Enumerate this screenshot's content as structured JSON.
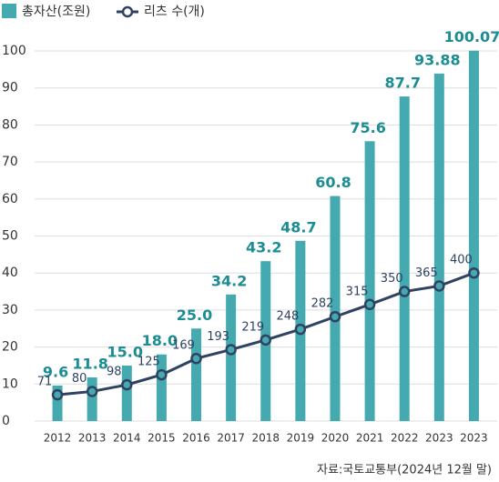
{
  "chart_data": {
    "type": "bar-line",
    "categories": [
      "2012",
      "2013",
      "2014",
      "2015",
      "2016",
      "2017",
      "2018",
      "2019",
      "2020",
      "2021",
      "2022",
      "2023",
      "2023"
    ],
    "series": [
      {
        "name": "총자산(조원)",
        "type": "bar",
        "color": "#45aab0",
        "label_color": "#1b8d93",
        "values": [
          9.6,
          11.8,
          15.0,
          18.0,
          25.0,
          34.2,
          43.2,
          48.7,
          60.8,
          75.6,
          87.7,
          93.88,
          100.07
        ],
        "value_labels": [
          "9.6",
          "11.8",
          "15.0",
          "18.0",
          "25.0",
          "34.2",
          "43.2",
          "48.7",
          "60.8",
          "75.6",
          "87.7",
          "93.88",
          "100.07"
        ]
      },
      {
        "name": "리츠 수(개)",
        "type": "line",
        "axis": "y2",
        "color": "#2f4262",
        "values": [
          71,
          80,
          98,
          125,
          169,
          193,
          219,
          248,
          282,
          315,
          350,
          365,
          400
        ]
      }
    ],
    "ylim": [
      0,
      100
    ],
    "yticks": [
      0,
      10,
      20,
      30,
      40,
      50,
      60,
      70,
      80,
      90,
      100
    ],
    "y2lim": [
      0,
      1000
    ],
    "grid": true,
    "source": "자료:국토교통부(2024년 12월 말)"
  }
}
